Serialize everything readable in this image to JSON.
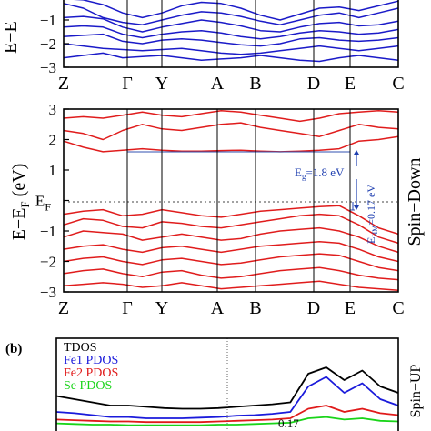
{
  "chart_data": [
    {
      "type": "line",
      "panel": "spin-up band structure (top, cropped)",
      "ylabel": "E−E",
      "side_label": "",
      "k_labels": [
        "Z",
        "Γ",
        "Y",
        "A",
        "B",
        "D",
        "E",
        "C"
      ],
      "y_ticks": [
        "−1",
        "−2",
        "−3"
      ],
      "ylim": [
        -3.0,
        -0.0
      ],
      "bands": [
        [
          -0.1,
          -0.15,
          -0.35,
          -0.7,
          -0.9,
          -0.7,
          -0.4,
          -0.25,
          -0.3,
          -0.5,
          -0.8,
          -1.0,
          -0.75,
          -0.5,
          -0.45,
          -0.6,
          -0.4,
          -0.2
        ],
        [
          -0.3,
          -0.5,
          -0.9,
          -1.1,
          -1.2,
          -1.0,
          -0.8,
          -0.65,
          -0.7,
          -0.85,
          -1.05,
          -1.2,
          -1.0,
          -0.8,
          -0.7,
          -0.9,
          -0.7,
          -0.5
        ],
        [
          -0.9,
          -0.85,
          -0.95,
          -1.3,
          -1.5,
          -1.3,
          -1.15,
          -1.0,
          -1.1,
          -1.25,
          -1.45,
          -1.5,
          -1.3,
          -1.15,
          -1.1,
          -1.25,
          -1.2,
          -1.05
        ],
        [
          -1.3,
          -1.25,
          -1.3,
          -1.6,
          -1.75,
          -1.6,
          -1.5,
          -1.45,
          -1.55,
          -1.7,
          -1.8,
          -1.7,
          -1.55,
          -1.45,
          -1.5,
          -1.6,
          -1.55,
          -1.4
        ],
        [
          -1.7,
          -1.65,
          -1.6,
          -1.9,
          -2.0,
          -1.85,
          -1.8,
          -1.85,
          -1.95,
          -2.05,
          -2.1,
          -2.0,
          -1.8,
          -1.75,
          -1.85,
          -1.9,
          -1.85,
          -1.75
        ],
        [
          -2.0,
          -2.1,
          -2.2,
          -2.25,
          -2.3,
          -2.25,
          -2.2,
          -2.3,
          -2.4,
          -2.45,
          -2.4,
          -2.3,
          -2.2,
          -2.1,
          -2.2,
          -2.3,
          -2.2,
          -2.1
        ],
        [
          -2.6,
          -2.5,
          -2.4,
          -2.6,
          -2.55,
          -2.5,
          -2.6,
          -2.7,
          -2.65,
          -2.6,
          -2.5,
          -2.6,
          -2.7,
          -2.75,
          -2.6,
          -2.5,
          -2.6,
          -2.7
        ]
      ]
    },
    {
      "type": "line",
      "panel": "spin-down band structure (middle)",
      "ylabel": "E−E",
      "ylabel_sub": "F",
      "ylabel_unit": "(eV)",
      "side_label": "Spin−Down",
      "k_labels": [
        "Z",
        "Γ",
        "Y",
        "A",
        "B",
        "D",
        "E",
        "C"
      ],
      "y_ticks": [
        "3",
        "2",
        "1",
        "E",
        "−1",
        "−2",
        "−3"
      ],
      "y_tick_sub": "F",
      "ylim": [
        -3.0,
        3.0
      ],
      "gap_annotation": "E",
      "gap_annotation_sub": "g",
      "gap_annotation_rest": "=1.8 eV",
      "hm_annotation": "E",
      "hm_annotation_sub": "HM",
      "hm_annotation_rest": "=0.17 eV",
      "conduction_band_min_ev": 1.6,
      "valence_band_max_ev": -0.17,
      "bands": [
        [
          1.95,
          1.75,
          1.6,
          1.65,
          1.7,
          1.65,
          1.62,
          1.62,
          1.64,
          1.65,
          1.62,
          1.6,
          1.62,
          1.65,
          1.7,
          1.95,
          2.0,
          2.1
        ],
        [
          2.3,
          2.2,
          2.0,
          2.3,
          2.5,
          2.35,
          2.3,
          2.4,
          2.5,
          2.55,
          2.4,
          2.3,
          2.2,
          2.1,
          2.3,
          2.5,
          2.4,
          2.35
        ],
        [
          2.7,
          2.75,
          2.7,
          2.8,
          2.9,
          2.8,
          2.75,
          2.85,
          2.95,
          2.9,
          2.8,
          2.7,
          2.6,
          2.7,
          2.85,
          2.9,
          2.95,
          2.9
        ],
        [
          -0.45,
          -0.35,
          -0.3,
          -0.5,
          -0.45,
          -0.3,
          -0.4,
          -0.5,
          -0.55,
          -0.45,
          -0.35,
          -0.3,
          -0.25,
          -0.2,
          -0.17,
          -0.5,
          -0.9,
          -1.1
        ],
        [
          -0.8,
          -0.6,
          -0.65,
          -0.85,
          -0.9,
          -0.7,
          -0.75,
          -0.85,
          -0.9,
          -0.8,
          -0.7,
          -0.6,
          -0.5,
          -0.45,
          -0.5,
          -0.8,
          -1.2,
          -1.4
        ],
        [
          -1.2,
          -1.0,
          -1.05,
          -1.1,
          -1.3,
          -1.2,
          -1.1,
          -1.2,
          -1.3,
          -1.25,
          -1.1,
          -1.0,
          -0.95,
          -0.9,
          -1.0,
          -1.2,
          -1.5,
          -1.7
        ],
        [
          -1.6,
          -1.5,
          -1.45,
          -1.6,
          -1.7,
          -1.55,
          -1.5,
          -1.6,
          -1.7,
          -1.6,
          -1.5,
          -1.45,
          -1.4,
          -1.35,
          -1.4,
          -1.6,
          -1.85,
          -2.0
        ],
        [
          -2.0,
          -1.9,
          -1.85,
          -2.0,
          -2.1,
          -1.95,
          -1.9,
          -2.0,
          -2.1,
          -2.05,
          -1.95,
          -1.85,
          -1.8,
          -1.75,
          -1.8,
          -2.0,
          -2.2,
          -2.3
        ],
        [
          -2.4,
          -2.3,
          -2.25,
          -2.4,
          -2.5,
          -2.35,
          -2.3,
          -2.45,
          -2.55,
          -2.5,
          -2.4,
          -2.3,
          -2.25,
          -2.2,
          -2.3,
          -2.45,
          -2.55,
          -2.6
        ],
        [
          -2.8,
          -2.75,
          -2.7,
          -2.75,
          -2.85,
          -2.8,
          -2.7,
          -2.8,
          -2.9,
          -2.85,
          -2.8,
          -2.75,
          -2.7,
          -2.65,
          -2.75,
          -2.85,
          -2.9,
          -2.95
        ]
      ]
    },
    {
      "type": "line",
      "panel": "(b) density of states (bottom, cropped)",
      "panel_label": "(b)",
      "side_label": "Spin−UP",
      "legend": [
        "TDOS",
        "Fe1 PDOS",
        "Fe2 PDOS",
        "Se PDOS"
      ],
      "fragment_text": "0.17",
      "series": [
        {
          "name": "TDOS",
          "values": [
            0.55,
            0.5,
            0.45,
            0.4,
            0.4,
            0.38,
            0.36,
            0.35,
            0.35,
            0.36,
            0.38,
            0.4,
            0.42,
            0.45,
            0.9,
            1.0,
            0.8,
            0.95,
            0.7,
            0.6
          ]
        },
        {
          "name": "Fe1 PDOS",
          "values": [
            0.3,
            0.28,
            0.25,
            0.22,
            0.22,
            0.2,
            0.2,
            0.2,
            0.21,
            0.22,
            0.24,
            0.25,
            0.27,
            0.3,
            0.7,
            0.85,
            0.6,
            0.75,
            0.5,
            0.4
          ]
        },
        {
          "name": "Fe2 PDOS",
          "values": [
            0.18,
            0.17,
            0.16,
            0.15,
            0.15,
            0.14,
            0.14,
            0.14,
            0.14,
            0.15,
            0.16,
            0.17,
            0.18,
            0.2,
            0.35,
            0.4,
            0.3,
            0.35,
            0.28,
            0.25
          ]
        },
        {
          "name": "Se PDOS",
          "values": [
            0.12,
            0.11,
            0.1,
            0.1,
            0.09,
            0.09,
            0.09,
            0.09,
            0.09,
            0.1,
            0.1,
            0.11,
            0.12,
            0.13,
            0.2,
            0.22,
            0.18,
            0.2,
            0.16,
            0.15
          ]
        }
      ],
      "colors": {
        "TDOS": "#000000",
        "Fe1 PDOS": "#1a1adb",
        "Fe2 PDOS": "#e01a1a",
        "Se PDOS": "#19d419"
      }
    }
  ],
  "colors": {
    "spin_up_bands": "#1a1ac8",
    "spin_down_bands": "#e01c1c",
    "annotation": "#1f3fb0"
  }
}
